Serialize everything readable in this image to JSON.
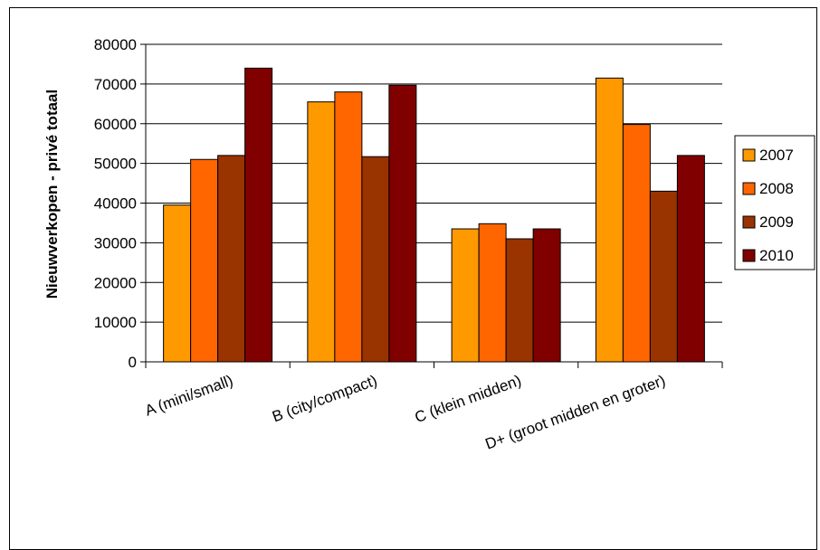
{
  "chart_data": {
    "type": "bar",
    "title": "",
    "xlabel": "",
    "ylabel": "Nieuwverkopen - privé totaal",
    "ylim": [
      0,
      80000
    ],
    "yticks": [
      0,
      10000,
      20000,
      30000,
      40000,
      50000,
      60000,
      70000,
      80000
    ],
    "grid": true,
    "legend_position": "right",
    "categories": [
      "A (mini/small)",
      "B (city/compact)",
      "C (klein midden)",
      "D+ (groot midden en groter)"
    ],
    "series": [
      {
        "name": "2007",
        "color": "#FF9900",
        "values": [
          39500,
          65500,
          33500,
          71500
        ]
      },
      {
        "name": "2008",
        "color": "#FF6600",
        "values": [
          51000,
          68000,
          34800,
          59800
        ]
      },
      {
        "name": "2009",
        "color": "#993300",
        "values": [
          52000,
          51700,
          31000,
          43000
        ]
      },
      {
        "name": "2010",
        "color": "#800000",
        "values": [
          74000,
          69700,
          33500,
          52000
        ]
      }
    ]
  }
}
